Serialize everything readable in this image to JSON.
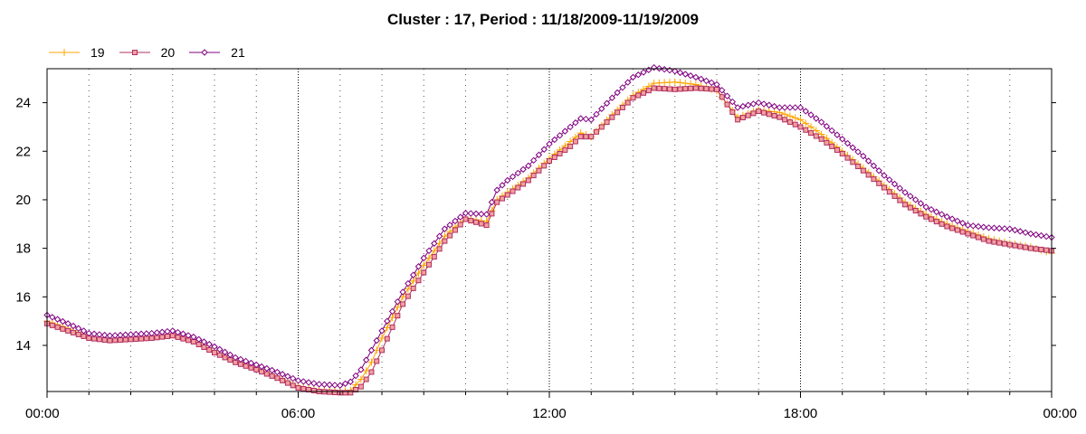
{
  "chart_data": {
    "type": "line",
    "title": "Cluster : 17, Period : 11/18/2009-11/19/2009",
    "xlabel": "",
    "ylabel": "",
    "x_unit": "hours since 00:00",
    "x_ticks": [
      {
        "value": 0,
        "label": "00:00"
      },
      {
        "value": 6,
        "label": "06:00"
      },
      {
        "value": 12,
        "label": "12:00"
      },
      {
        "value": 18,
        "label": "18:00"
      },
      {
        "value": 24,
        "label": "00:00"
      }
    ],
    "xlim": [
      0,
      24
    ],
    "y_ticks": [
      14,
      16,
      18,
      20,
      22,
      24
    ],
    "ylim": [
      12.1,
      25.4
    ],
    "grid": true,
    "legend_placement": "top-left",
    "series": [
      {
        "name": "19",
        "color": "#FFA500",
        "marker": "plus",
        "points": [
          [
            0,
            15.0
          ],
          [
            0.5,
            14.7
          ],
          [
            1,
            14.35
          ],
          [
            1.5,
            14.25
          ],
          [
            2,
            14.3
          ],
          [
            2.5,
            14.35
          ],
          [
            3,
            14.45
          ],
          [
            3.5,
            14.2
          ],
          [
            4,
            13.75
          ],
          [
            4.5,
            13.35
          ],
          [
            5,
            13.05
          ],
          [
            5.5,
            12.7
          ],
          [
            6,
            12.3
          ],
          [
            6.5,
            12.15
          ],
          [
            7,
            12.1
          ],
          [
            7.25,
            12.15
          ],
          [
            7.5,
            12.6
          ],
          [
            7.75,
            13.3
          ],
          [
            8,
            14.3
          ],
          [
            8.5,
            16.0
          ],
          [
            9,
            17.3
          ],
          [
            9.5,
            18.5
          ],
          [
            10,
            19.25
          ],
          [
            10.5,
            19.1
          ],
          [
            10.75,
            20.0
          ],
          [
            11,
            20.3
          ],
          [
            11.5,
            20.9
          ],
          [
            12,
            21.7
          ],
          [
            12.5,
            22.4
          ],
          [
            12.75,
            22.75
          ],
          [
            13,
            22.6
          ],
          [
            13.5,
            23.5
          ],
          [
            14,
            24.3
          ],
          [
            14.5,
            24.8
          ],
          [
            15,
            24.85
          ],
          [
            15.5,
            24.75
          ],
          [
            16,
            24.5
          ],
          [
            16.5,
            23.4
          ],
          [
            17,
            23.7
          ],
          [
            17.5,
            23.6
          ],
          [
            18,
            23.3
          ],
          [
            18.5,
            22.7
          ],
          [
            19,
            22.0
          ],
          [
            19.5,
            21.3
          ],
          [
            20,
            20.6
          ],
          [
            20.5,
            19.9
          ],
          [
            21,
            19.4
          ],
          [
            21.5,
            19.0
          ],
          [
            22,
            18.7
          ],
          [
            22.5,
            18.4
          ],
          [
            23,
            18.2
          ],
          [
            23.5,
            18.05
          ],
          [
            24,
            17.8
          ]
        ]
      },
      {
        "name": "20",
        "color": "#B03060",
        "marker": "square",
        "points": [
          [
            0,
            14.9
          ],
          [
            0.5,
            14.6
          ],
          [
            1,
            14.3
          ],
          [
            1.5,
            14.2
          ],
          [
            2,
            14.25
          ],
          [
            2.5,
            14.3
          ],
          [
            3,
            14.4
          ],
          [
            3.5,
            14.15
          ],
          [
            4,
            13.7
          ],
          [
            4.5,
            13.3
          ],
          [
            5,
            13.0
          ],
          [
            5.5,
            12.65
          ],
          [
            6,
            12.25
          ],
          [
            6.5,
            12.1
          ],
          [
            7,
            12.05
          ],
          [
            7.25,
            12.05
          ],
          [
            7.5,
            12.3
          ],
          [
            7.75,
            12.9
          ],
          [
            8,
            13.8
          ],
          [
            8.5,
            15.7
          ],
          [
            9,
            17.0
          ],
          [
            9.5,
            18.3
          ],
          [
            10,
            19.2
          ],
          [
            10.5,
            18.95
          ],
          [
            10.75,
            19.9
          ],
          [
            11,
            20.2
          ],
          [
            11.5,
            20.8
          ],
          [
            12,
            21.6
          ],
          [
            12.5,
            22.2
          ],
          [
            12.75,
            22.6
          ],
          [
            13,
            22.6
          ],
          [
            13.5,
            23.4
          ],
          [
            14,
            24.2
          ],
          [
            14.5,
            24.6
          ],
          [
            15,
            24.55
          ],
          [
            15.5,
            24.6
          ],
          [
            16,
            24.55
          ],
          [
            16.5,
            23.3
          ],
          [
            17,
            23.65
          ],
          [
            17.5,
            23.4
          ],
          [
            18,
            23.0
          ],
          [
            18.5,
            22.5
          ],
          [
            19,
            21.9
          ],
          [
            19.5,
            21.2
          ],
          [
            20,
            20.5
          ],
          [
            20.5,
            19.8
          ],
          [
            21,
            19.3
          ],
          [
            21.5,
            18.9
          ],
          [
            22,
            18.6
          ],
          [
            22.5,
            18.3
          ],
          [
            23,
            18.15
          ],
          [
            23.5,
            18.0
          ],
          [
            24,
            17.9
          ]
        ]
      },
      {
        "name": "21",
        "color": "#800080",
        "marker": "diamond",
        "points": [
          [
            0,
            15.25
          ],
          [
            0.5,
            14.9
          ],
          [
            1,
            14.5
          ],
          [
            1.5,
            14.4
          ],
          [
            2,
            14.45
          ],
          [
            2.5,
            14.5
          ],
          [
            3,
            14.6
          ],
          [
            3.5,
            14.35
          ],
          [
            4,
            13.95
          ],
          [
            4.5,
            13.5
          ],
          [
            5,
            13.2
          ],
          [
            5.5,
            12.9
          ],
          [
            6,
            12.55
          ],
          [
            6.5,
            12.4
          ],
          [
            7,
            12.35
          ],
          [
            7.25,
            12.5
          ],
          [
            7.5,
            13.0
          ],
          [
            7.75,
            13.8
          ],
          [
            8,
            14.6
          ],
          [
            8.5,
            16.2
          ],
          [
            9,
            17.6
          ],
          [
            9.5,
            18.8
          ],
          [
            10,
            19.45
          ],
          [
            10.5,
            19.4
          ],
          [
            10.75,
            20.4
          ],
          [
            11,
            20.8
          ],
          [
            11.5,
            21.4
          ],
          [
            12,
            22.3
          ],
          [
            12.5,
            23.0
          ],
          [
            12.75,
            23.35
          ],
          [
            13,
            23.3
          ],
          [
            13.5,
            24.2
          ],
          [
            14,
            25.05
          ],
          [
            14.5,
            25.45
          ],
          [
            15,
            25.3
          ],
          [
            15.5,
            25.05
          ],
          [
            16,
            24.75
          ],
          [
            16.5,
            23.8
          ],
          [
            17,
            24.0
          ],
          [
            17.5,
            23.8
          ],
          [
            18,
            23.8
          ],
          [
            18.5,
            23.2
          ],
          [
            19,
            22.5
          ],
          [
            19.5,
            21.8
          ],
          [
            20,
            21.0
          ],
          [
            20.5,
            20.3
          ],
          [
            21,
            19.7
          ],
          [
            21.5,
            19.3
          ],
          [
            22,
            18.95
          ],
          [
            22.5,
            18.85
          ],
          [
            23,
            18.8
          ],
          [
            23.5,
            18.6
          ],
          [
            24,
            18.45
          ]
        ]
      }
    ]
  }
}
